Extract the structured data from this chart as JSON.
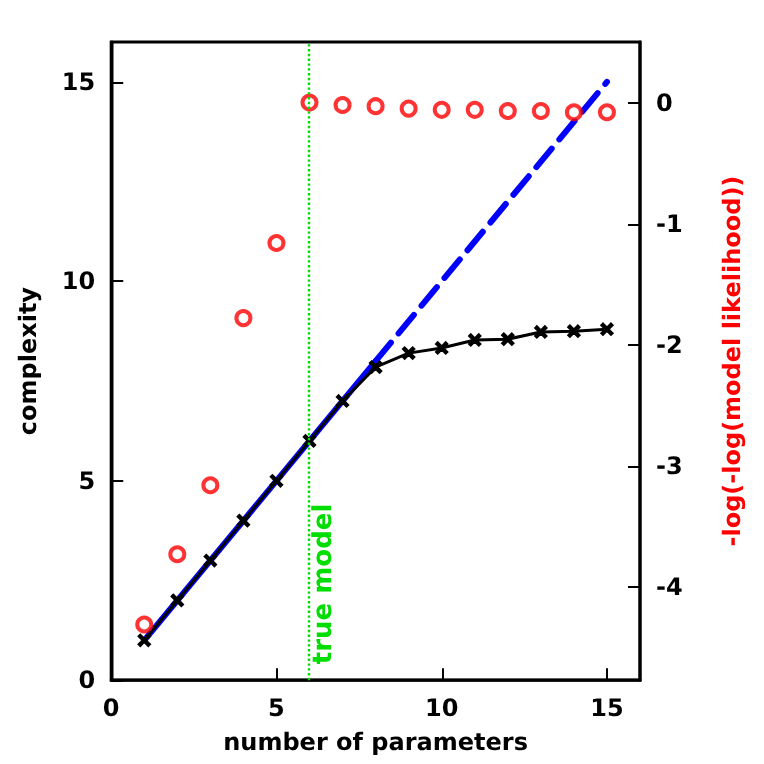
{
  "chart_data": {
    "type": "line",
    "xlabel": "number of parameters",
    "ylabel": "complexity",
    "y2label": "-log(-log(model likelihood))",
    "xlim": [
      0,
      16
    ],
    "xticks": [
      0,
      5,
      10,
      15
    ],
    "ylim": [
      0,
      16
    ],
    "yticks": [
      0,
      5,
      10,
      15
    ],
    "y2lim": [
      -4.77,
      0.5
    ],
    "y2ticks": [
      -4,
      -3,
      -2,
      -1,
      0
    ],
    "grid": false,
    "series": [
      {
        "color": "#0000ff",
        "line_style": "solid",
        "marker": "none",
        "x": [
          1,
          8
        ],
        "values": [
          1,
          8
        ]
      },
      {
        "color": "#0000ff",
        "line_style": "dashed",
        "marker": "none",
        "x": [
          8,
          15
        ],
        "values": [
          8,
          15
        ]
      },
      {
        "color": "#000000",
        "line_style": "solid",
        "marker": "cross",
        "x": [
          1,
          2,
          3,
          4,
          5,
          6,
          7,
          8,
          9,
          10,
          11,
          12,
          13,
          14,
          15
        ],
        "values": [
          1,
          2,
          3,
          4,
          5,
          6,
          7,
          7.85,
          8.2,
          8.33,
          8.53,
          8.55,
          8.73,
          8.75,
          8.8
        ]
      },
      {
        "type": "scatter",
        "color": "#ff0000",
        "marker": "circle",
        "axis": "y2",
        "x": [
          1,
          2,
          3,
          4,
          5,
          6,
          7,
          8,
          9,
          10,
          11,
          12,
          13,
          14,
          15
        ],
        "values": [
          -4.31,
          -3.73,
          -3.16,
          -1.78,
          -1.16,
          0,
          -0.02,
          -0.03,
          -0.05,
          -0.06,
          -0.06,
          -0.07,
          -0.07,
          -0.08,
          -0.08
        ]
      }
    ],
    "ref_lines": [
      {
        "axis": "x",
        "value": 6,
        "label": "true model",
        "color": "#00dd00",
        "line_style": "dotted"
      }
    ]
  }
}
